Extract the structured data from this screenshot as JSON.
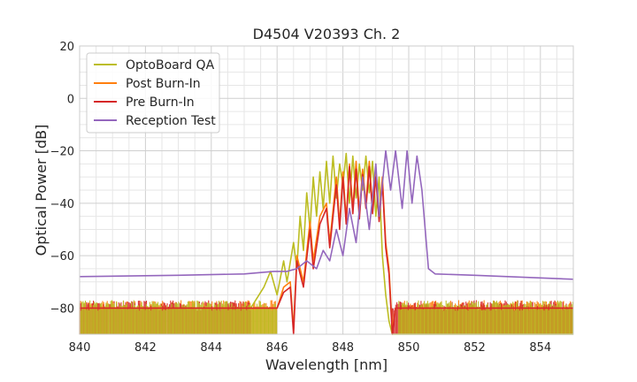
{
  "chart_data": {
    "type": "line",
    "title": "D4504 V20393 Ch. 2",
    "xlabel": "Wavelength [nm]",
    "ylabel": "Optical Power [dB]",
    "xlim": [
      840,
      855
    ],
    "ylim": [
      -90,
      20
    ],
    "xticks": [
      840,
      842,
      844,
      846,
      848,
      850,
      852,
      854
    ],
    "yticks": [
      20,
      0,
      -20,
      -40,
      -60,
      -80
    ],
    "xtick_labels": [
      "840",
      "842",
      "844",
      "846",
      "848",
      "850",
      "852",
      "854"
    ],
    "ytick_labels": [
      "20",
      "0",
      "−20",
      "−40",
      "−60",
      "−80"
    ],
    "grid": true,
    "legend_position": "top-left",
    "noise_floor": -80,
    "series": [
      {
        "name": "OptoBoard QA",
        "color": "#bcbd22",
        "x": [
          840.0,
          845.2,
          845.6,
          845.8,
          846.0,
          846.2,
          846.3,
          846.5,
          846.6,
          846.7,
          846.8,
          846.9,
          847.0,
          847.1,
          847.2,
          847.3,
          847.4,
          847.5,
          847.6,
          847.7,
          847.8,
          847.9,
          848.0,
          848.1,
          848.2,
          848.3,
          848.4,
          848.5,
          848.6,
          848.7,
          848.8,
          848.9,
          849.0,
          849.1,
          849.2,
          849.3,
          849.4,
          849.5,
          849.6,
          855.0
        ],
        "y": [
          -80,
          -80,
          -72,
          -66,
          -75,
          -62,
          -70,
          -55,
          -65,
          -45,
          -58,
          -36,
          -50,
          -30,
          -45,
          -28,
          -42,
          -24,
          -40,
          -22,
          -38,
          -25,
          -33,
          -21,
          -40,
          -22,
          -38,
          -25,
          -35,
          -22,
          -36,
          -24,
          -45,
          -30,
          -60,
          -75,
          -85,
          -90,
          -90,
          -90
        ]
      },
      {
        "name": "Post Burn-In",
        "color": "#ff7f0e",
        "x": [
          840.0,
          846.0,
          846.2,
          846.4,
          846.5,
          846.6,
          846.8,
          847.0,
          847.1,
          847.3,
          847.5,
          847.6,
          847.8,
          847.9,
          848.0,
          848.1,
          848.2,
          848.3,
          848.4,
          848.5,
          848.6,
          848.7,
          848.8,
          848.9,
          849.0,
          849.1,
          849.2,
          849.3,
          849.4,
          849.5,
          849.6,
          849.7,
          850.0,
          855.0
        ],
        "y": [
          -80,
          -80,
          -72,
          -70,
          -88,
          -60,
          -70,
          -47,
          -62,
          -45,
          -40,
          -55,
          -30,
          -48,
          -28,
          -46,
          -25,
          -42,
          -24,
          -44,
          -27,
          -40,
          -24,
          -42,
          -28,
          -45,
          -30,
          -55,
          -65,
          -88,
          -80,
          -80,
          -80,
          -80
        ]
      },
      {
        "name": "Pre Burn-In",
        "color": "#d62728",
        "x": [
          840.0,
          846.0,
          846.2,
          846.4,
          846.5,
          846.6,
          846.8,
          847.0,
          847.1,
          847.3,
          847.5,
          847.6,
          847.8,
          847.9,
          848.0,
          848.1,
          848.2,
          848.3,
          848.4,
          848.5,
          848.6,
          848.7,
          848.8,
          848.9,
          849.0,
          849.1,
          849.2,
          849.3,
          849.4,
          849.5,
          849.6,
          849.7,
          850.0,
          855.0
        ],
        "y": [
          -80,
          -80,
          -74,
          -72,
          -90,
          -62,
          -72,
          -50,
          -65,
          -48,
          -42,
          -57,
          -33,
          -50,
          -30,
          -48,
          -26,
          -44,
          -27,
          -46,
          -29,
          -42,
          -26,
          -44,
          -30,
          -47,
          -32,
          -57,
          -67,
          -90,
          -80,
          -80,
          -80,
          -80
        ]
      },
      {
        "name": "Reception Test",
        "color": "#9467bd",
        "x": [
          840.0,
          843.0,
          845.0,
          845.9,
          846.3,
          846.6,
          846.9,
          847.2,
          847.4,
          847.6,
          847.8,
          848.0,
          848.2,
          848.4,
          848.6,
          848.8,
          849.0,
          849.1,
          849.3,
          849.45,
          849.6,
          849.8,
          849.95,
          850.1,
          850.25,
          850.4,
          850.5,
          850.6,
          850.8,
          852.0,
          855.0
        ],
        "y": [
          -68,
          -67.5,
          -67,
          -66,
          -66,
          -65,
          -62,
          -65,
          -58,
          -62,
          -50,
          -60,
          -42,
          -55,
          -30,
          -50,
          -25,
          -45,
          -20,
          -35,
          -20,
          -42,
          -20,
          -40,
          -22,
          -35,
          -50,
          -65,
          -67,
          -67.5,
          -69
        ]
      }
    ]
  }
}
